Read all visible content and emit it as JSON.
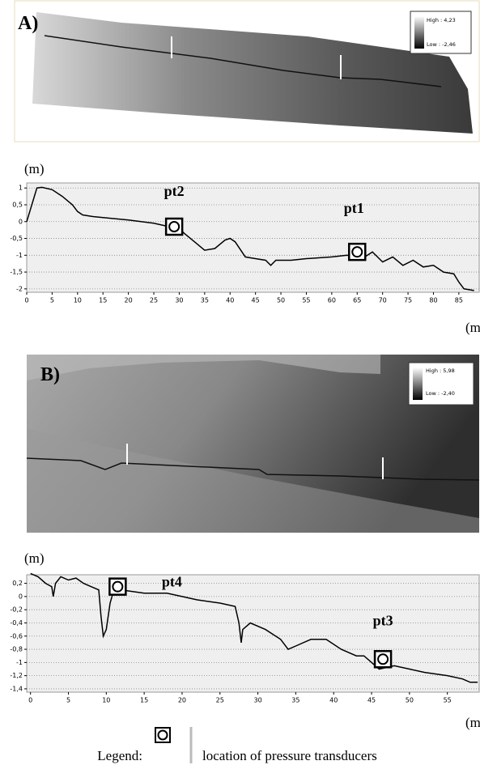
{
  "panels": [
    {
      "label": "A)",
      "high": "High : 4,23",
      "low": "Low : -2,46"
    },
    {
      "label": "B)",
      "high": "High : 5,98",
      "low": "Low : -2,40"
    }
  ],
  "legend": {
    "title": "Legend:",
    "text": "location of pressure transducers"
  },
  "chart_data": [
    {
      "type": "line",
      "ylabel": "(m)",
      "xlabel": "(m)",
      "color": "#000000",
      "grid": true,
      "xlim": [
        0,
        89
      ],
      "ylim": [
        -2.1,
        1.15
      ],
      "xticks": [
        0,
        5,
        10,
        15,
        20,
        25,
        30,
        35,
        40,
        45,
        50,
        55,
        60,
        65,
        70,
        75,
        80,
        85
      ],
      "yticks": [
        {
          "value": 1,
          "label": "1"
        },
        {
          "value": 0.5,
          "label": "0,5"
        },
        0,
        {
          "value": -0.5,
          "label": "-0,5"
        },
        {
          "value": -1,
          "label": "-1"
        },
        {
          "value": -1.5,
          "label": "-1,5"
        },
        {
          "value": -2,
          "label": "-2"
        }
      ],
      "x": [
        0,
        1,
        2,
        3,
        5,
        7,
        9,
        10,
        11,
        13,
        15,
        20,
        25,
        28,
        30,
        31,
        33,
        35,
        37,
        39,
        40,
        41,
        43,
        45,
        47,
        48,
        49,
        52,
        55,
        60,
        63,
        66,
        68,
        70,
        72,
        74,
        76,
        78,
        80,
        82,
        84,
        85,
        86,
        88
      ],
      "values": [
        0,
        0.5,
        1.0,
        1.02,
        0.95,
        0.75,
        0.5,
        0.3,
        0.2,
        0.15,
        0.12,
        0.05,
        -0.05,
        -0.15,
        -0.2,
        -0.35,
        -0.6,
        -0.85,
        -0.8,
        -0.55,
        -0.5,
        -0.6,
        -1.05,
        -1.1,
        -1.15,
        -1.3,
        -1.15,
        -1.15,
        -1.1,
        -1.05,
        -1.0,
        -1.1,
        -0.9,
        -1.2,
        -1.05,
        -1.3,
        -1.15,
        -1.35,
        -1.3,
        -1.5,
        -1.55,
        -1.8,
        -2.0,
        -2.05
      ],
      "markers": [
        {
          "label": "pt2",
          "x": 29,
          "y": -0.15
        },
        {
          "label": "pt1",
          "x": 65,
          "y": -0.9
        }
      ]
    },
    {
      "type": "line",
      "ylabel": "(m)",
      "xlabel": "(m)",
      "color": "#000000",
      "grid": true,
      "xlim": [
        -0.5,
        59.2
      ],
      "ylim": [
        -1.45,
        0.33
      ],
      "xticks": [
        0,
        5,
        10,
        15,
        20,
        25,
        30,
        35,
        40,
        45,
        50,
        55
      ],
      "yticks": [
        {
          "value": 0.2,
          "label": "0,2"
        },
        0,
        {
          "value": -0.2,
          "label": "-0,2"
        },
        {
          "value": -0.4,
          "label": "-0,4"
        },
        {
          "value": -0.6,
          "label": "-0,6"
        },
        {
          "value": -0.8,
          "label": "-0,8"
        },
        {
          "value": -1,
          "label": "-1"
        },
        {
          "value": -1.2,
          "label": "-1,2"
        },
        {
          "value": -1.4,
          "label": "-1,4"
        }
      ],
      "x": [
        0,
        1,
        2,
        2.8,
        3,
        3.3,
        4,
        5,
        6,
        7,
        8,
        9,
        9.3,
        9.6,
        10,
        10.5,
        11,
        12,
        15,
        18,
        20,
        22,
        25,
        27,
        27.5,
        27.8,
        28,
        29,
        31,
        33,
        34,
        35,
        37,
        39,
        41,
        43,
        44,
        45,
        46,
        48,
        50,
        52,
        55,
        57,
        58,
        59
      ],
      "values": [
        0.35,
        0.3,
        0.2,
        0.15,
        0,
        0.2,
        0.3,
        0.25,
        0.28,
        0.2,
        0.15,
        0.1,
        -0.3,
        -0.6,
        -0.5,
        -0.1,
        0.1,
        0.1,
        0.05,
        0.05,
        0,
        -0.05,
        -0.1,
        -0.15,
        -0.4,
        -0.7,
        -0.5,
        -0.4,
        -0.5,
        -0.65,
        -0.8,
        -0.75,
        -0.65,
        -0.65,
        -0.8,
        -0.9,
        -0.9,
        -1.0,
        -1.1,
        -1.05,
        -1.1,
        -1.15,
        -1.2,
        -1.25,
        -1.3,
        -1.3
      ],
      "markers": [
        {
          "label": "pt4",
          "x": 11.5,
          "y": 0.15
        },
        {
          "label": "pt3",
          "x": 46.5,
          "y": -0.95
        }
      ]
    }
  ]
}
